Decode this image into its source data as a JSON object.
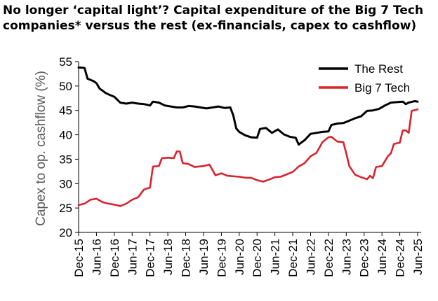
{
  "title_line1": "No longer ‘capital light’? Capital expenditure of the Big 7 Tech",
  "title_line2": "companies* versus the rest (ex-financials, capex to cashflow)",
  "chart_data": {
    "type": "line",
    "title": "No longer ‘capital light’? Capital expenditure of the Big 7 Tech companies* versus the rest (ex-financials, capex to cashflow)",
    "xlabel": "",
    "ylabel": "Capex to op. cashflow (%)",
    "ylim": [
      20,
      55
    ],
    "yticks": [
      20,
      25,
      30,
      35,
      40,
      45,
      50,
      55
    ],
    "x_start": "Dec-15",
    "x_end": "Jun-25",
    "xtick_labels": [
      "Dec-15",
      "Jun-16",
      "Dec-16",
      "Jun-17",
      "Dec-17",
      "Jun-18",
      "Dec-18",
      "Jun-19",
      "Dec-19",
      "Jun-20",
      "Dec-20",
      "Jun-21",
      "Dec-21",
      "Jun-22",
      "Dec-22",
      "Jun-23",
      "Dec-23",
      "Jun-24",
      "Dec-24",
      "Jun-25"
    ],
    "legend_position": "top-right",
    "grid": false,
    "series": [
      {
        "name": "The Rest",
        "color": "#000000",
        "points": [
          [
            "Dec-15",
            53.8
          ],
          [
            "Feb-16",
            53.7
          ],
          [
            "Mar-16",
            51.5
          ],
          [
            "May-16",
            51.0
          ],
          [
            "Jun-16",
            50.6
          ],
          [
            "Jul-16",
            49.5
          ],
          [
            "Sep-16",
            48.6
          ],
          [
            "Oct-16",
            48.3
          ],
          [
            "Dec-16",
            47.8
          ],
          [
            "Jan-17",
            47.2
          ],
          [
            "Feb-17",
            46.6
          ],
          [
            "Apr-17",
            46.4
          ],
          [
            "Jun-17",
            46.6
          ],
          [
            "Aug-17",
            46.4
          ],
          [
            "Oct-17",
            46.3
          ],
          [
            "Dec-17",
            46.0
          ],
          [
            "Jan-18",
            46.8
          ],
          [
            "Mar-18",
            46.6
          ],
          [
            "May-18",
            46.0
          ],
          [
            "Jul-18",
            45.8
          ],
          [
            "Sep-18",
            45.6
          ],
          [
            "Nov-18",
            45.6
          ],
          [
            "Jan-19",
            45.9
          ],
          [
            "Mar-19",
            45.8
          ],
          [
            "May-19",
            45.6
          ],
          [
            "Jul-19",
            45.4
          ],
          [
            "Sep-19",
            45.6
          ],
          [
            "Nov-19",
            45.8
          ],
          [
            "Jan-20",
            45.5
          ],
          [
            "Mar-20",
            45.6
          ],
          [
            "Apr-20",
            44.0
          ],
          [
            "May-20",
            41.3
          ],
          [
            "Jun-20",
            40.6
          ],
          [
            "Aug-20",
            39.9
          ],
          [
            "Oct-20",
            39.5
          ],
          [
            "Dec-20",
            39.4
          ],
          [
            "Jan-21",
            41.2
          ],
          [
            "Mar-21",
            41.4
          ],
          [
            "May-21",
            40.4
          ],
          [
            "Jul-21",
            41.1
          ],
          [
            "Sep-21",
            40.1
          ],
          [
            "Nov-21",
            39.6
          ],
          [
            "Jan-22",
            39.4
          ],
          [
            "Feb-22",
            38.0
          ],
          [
            "Apr-22",
            38.9
          ],
          [
            "Jun-22",
            40.2
          ],
          [
            "Aug-22",
            40.4
          ],
          [
            "Oct-22",
            40.6
          ],
          [
            "Dec-22",
            40.7
          ],
          [
            "Jan-23",
            42.0
          ],
          [
            "Mar-23",
            42.3
          ],
          [
            "May-23",
            42.4
          ],
          [
            "Jul-23",
            42.9
          ],
          [
            "Sep-23",
            43.4
          ],
          [
            "Nov-23",
            43.8
          ],
          [
            "Jan-24",
            44.9
          ],
          [
            "Mar-24",
            45.0
          ],
          [
            "May-24",
            45.3
          ],
          [
            "Jul-24",
            46.0
          ],
          [
            "Sep-24",
            46.6
          ],
          [
            "Nov-24",
            46.7
          ],
          [
            "Jan-25",
            46.8
          ],
          [
            "Feb-25",
            46.3
          ],
          [
            "Mar-25",
            46.6
          ],
          [
            "May-25",
            46.9
          ],
          [
            "Jun-25",
            46.8
          ]
        ]
      },
      {
        "name": "Big 7 Tech",
        "color": "#d9232d",
        "points": [
          [
            "Dec-15",
            25.6
          ],
          [
            "Feb-16",
            25.9
          ],
          [
            "Apr-16",
            26.7
          ],
          [
            "Jun-16",
            26.9
          ],
          [
            "Aug-16",
            26.2
          ],
          [
            "Oct-16",
            25.9
          ],
          [
            "Dec-16",
            25.7
          ],
          [
            "Feb-17",
            25.4
          ],
          [
            "Apr-17",
            25.9
          ],
          [
            "Jun-17",
            26.7
          ],
          [
            "Aug-17",
            27.2
          ],
          [
            "Oct-17",
            28.8
          ],
          [
            "Dec-17",
            29.2
          ],
          [
            "Jan-18",
            33.5
          ],
          [
            "Mar-18",
            33.6
          ],
          [
            "Apr-18",
            35.2
          ],
          [
            "Jun-18",
            35.3
          ],
          [
            "Aug-18",
            35.2
          ],
          [
            "Sep-18",
            36.6
          ],
          [
            "Oct-18",
            36.6
          ],
          [
            "Nov-18",
            34.2
          ],
          [
            "Jan-19",
            34.0
          ],
          [
            "Mar-19",
            33.4
          ],
          [
            "Jun-19",
            33.6
          ],
          [
            "Aug-19",
            33.9
          ],
          [
            "Oct-19",
            31.7
          ],
          [
            "Dec-19",
            32.1
          ],
          [
            "Feb-20",
            31.6
          ],
          [
            "Apr-20",
            31.5
          ],
          [
            "Jun-20",
            31.4
          ],
          [
            "Aug-20",
            31.2
          ],
          [
            "Oct-20",
            31.2
          ],
          [
            "Dec-20",
            30.7
          ],
          [
            "Feb-21",
            30.4
          ],
          [
            "Apr-21",
            30.8
          ],
          [
            "Jun-21",
            31.3
          ],
          [
            "Aug-21",
            31.4
          ],
          [
            "Oct-21",
            31.9
          ],
          [
            "Dec-21",
            32.4
          ],
          [
            "Feb-22",
            33.5
          ],
          [
            "Apr-22",
            34.2
          ],
          [
            "Jun-22",
            35.6
          ],
          [
            "Aug-22",
            36.3
          ],
          [
            "Oct-22",
            38.5
          ],
          [
            "Dec-22",
            39.5
          ],
          [
            "Jan-23",
            39.6
          ],
          [
            "Mar-23",
            38.6
          ],
          [
            "May-23",
            38.5
          ],
          [
            "Jun-23",
            36.2
          ],
          [
            "Jul-23",
            33.6
          ],
          [
            "Sep-23",
            31.8
          ],
          [
            "Nov-23",
            31.3
          ],
          [
            "Jan-24",
            30.9
          ],
          [
            "Feb-24",
            31.6
          ],
          [
            "Mar-24",
            31.1
          ],
          [
            "Apr-24",
            33.4
          ],
          [
            "Jun-24",
            33.6
          ],
          [
            "Aug-24",
            35.6
          ],
          [
            "Sep-24",
            36.2
          ],
          [
            "Oct-24",
            38.1
          ],
          [
            "Dec-24",
            38.4
          ],
          [
            "Jan-25",
            40.9
          ],
          [
            "Feb-25",
            40.9
          ],
          [
            "Mar-25",
            40.4
          ],
          [
            "Apr-25",
            44.9
          ],
          [
            "Jun-25",
            45.2
          ]
        ]
      }
    ]
  }
}
